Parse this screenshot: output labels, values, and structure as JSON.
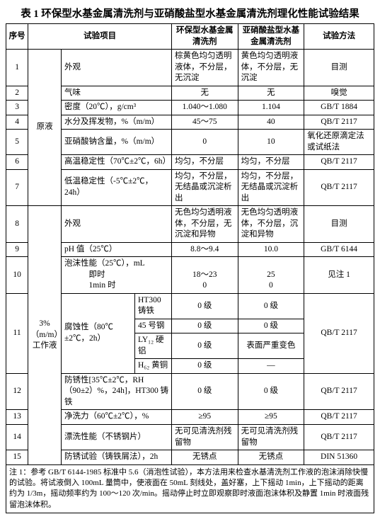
{
  "title": "表 1  环保型水基金属清洗剂与亚硝酸盐型水基金属清洗剂理化性能试验结果",
  "headers": {
    "seq": "序号",
    "item": "试验项目",
    "envClean": "环保型水基金属清洗剂",
    "nitriteClean": "亚硝酸盐型水基金属清洗剂",
    "method": "试验方法"
  },
  "groupA": "原液",
  "groupB": "3%（m/m）工作液",
  "rows": {
    "r1": {
      "n": "1",
      "item": "外观",
      "a": "棕黄色均匀透明液体，不分层，无沉淀",
      "b": "黄色均匀透明液体，不分层，无沉淀",
      "m": "目测"
    },
    "r2": {
      "n": "2",
      "item": "气味",
      "a": "无",
      "b": "无",
      "m": "嗅觉"
    },
    "r3": {
      "n": "3",
      "item": "密度（20℃），g/cm³",
      "a": "1.040～1.080",
      "b": "1.104",
      "m": "GB/T 1884"
    },
    "r4": {
      "n": "4",
      "item": "水分及挥发物，%（m/m）",
      "a": "45～75",
      "b": "40",
      "m": "QB/T 2117"
    },
    "r5": {
      "n": "5",
      "item": "亚硝酸钠含量，%（m/m）",
      "a": "0",
      "b": "10",
      "m": "氧化还原滴定法或试纸法"
    },
    "r6": {
      "n": "6",
      "item": "高温稳定性（70℃±2℃，6h）",
      "a": "均匀，不分层",
      "b": "均匀，不分层",
      "m": "QB/T 2117"
    },
    "r7": {
      "n": "7",
      "item": "低温稳定性（-5℃±2℃，24h）",
      "a": "均匀，不分层，无结晶或沉淀析出",
      "b": "均匀，不分层，无结晶或沉淀析出",
      "m": "QB/T 2117"
    },
    "r8": {
      "n": "8",
      "item": "外观",
      "a": "无色均匀透明液体，不分层，无沉淀和异物",
      "b": "无色均匀透明液体，不分层，沉淀和异物",
      "m": "目测"
    },
    "r9": {
      "n": "9",
      "item": "pH 值（25℃）",
      "a": "8.8～9.4",
      "b": "10.0",
      "m": "GB/T 6144"
    },
    "r10": {
      "n": "10",
      "item": "泡沫性能（25℃），mL\n　　　即时\n　　　1min 时",
      "a": "\n18～23\n0",
      "b": "\n25\n0",
      "m": "见注 1"
    },
    "r11_label": "腐蚀性（80℃±2℃，2h）",
    "r11a": {
      "sub": "HT300 铸铁",
      "a": "0 级",
      "b": "0 级"
    },
    "r11b": {
      "sub": "45 号钢",
      "a": "0 级",
      "b": "0 级"
    },
    "r11c": {
      "sub": "LY₁₂ 硬铝",
      "a": "0 级",
      "b": "表面严重变色"
    },
    "r11d": {
      "sub": "H₆₂ 黄铜",
      "a": "0 级",
      "b": "—"
    },
    "r11m": "QB/T 2117",
    "r12": {
      "n": "12",
      "item": "防锈性[35℃±2℃，RH（90±2）%，24h]，HT300 铸铁",
      "a": "0 级",
      "b": "0 级",
      "m": "QB/T 2117"
    },
    "r13": {
      "n": "13",
      "item": "净洗力（60℃±2℃），%",
      "a": "≥95",
      "b": "≥95",
      "m": "QB/T 2117"
    },
    "r14": {
      "n": "14",
      "item": "漂洗性能（不锈钢片）",
      "a": "无可见清洗剂残留物",
      "b": "无可见清洗剂残留物",
      "m": "QB/T 2117"
    },
    "r15": {
      "n": "15",
      "item": "防锈试验（铸铁屑法），2h",
      "a": "无锈点",
      "b": "无锈点",
      "m": "DIN 51360"
    }
  },
  "r11n": "11",
  "footnote": "注 1：参考 GB/T 6144-1985 标准中 5.6（消泡性试验），本方法用来检查水基清洗剂工作液的泡沫消除快慢的试验。将试液倒入 100mL 量筒中，使液面在 50mL 刻线处，盖好塞，上下摇动 1min，上下摇动的距离约为 1/3m，摇动频率约为 100～120 次/min。摇动停止时立即观察即时液面泡沫体积及静置 1min 时液面残留泡沫体积。"
}
